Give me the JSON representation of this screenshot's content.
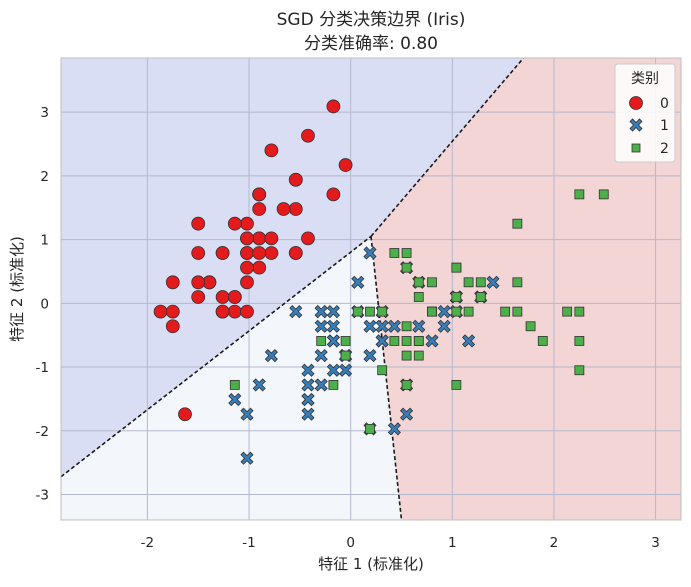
{
  "chart_data": {
    "type": "scatter",
    "title_line1": "SGD 分类决策边界 (Iris)",
    "title_line2": "分类准确率: 0.80",
    "xlabel": "特征 1 (标准化)",
    "ylabel": "特征 2 (标准化)",
    "xlim": [
      -2.85,
      3.25
    ],
    "ylim": [
      -3.4,
      3.85
    ],
    "xticks": [
      -2,
      -1,
      0,
      1,
      2,
      3
    ],
    "xtick_labels": [
      "-2",
      "-1",
      "0",
      "1",
      "2",
      "3"
    ],
    "yticks": [
      -3,
      -2,
      -1,
      0,
      1,
      2,
      3
    ],
    "ytick_labels": [
      "-3",
      "-2",
      "-1",
      "0",
      "1",
      "2",
      "3"
    ],
    "grid": true,
    "legend": {
      "title": "类别",
      "position": "top-right",
      "entries": [
        {
          "label": "0",
          "marker": "circle",
          "color": "#e41a1c"
        },
        {
          "label": "1",
          "marker": "x",
          "color": "#377eb8"
        },
        {
          "label": "2",
          "marker": "square",
          "color": "#4daf4a"
        }
      ]
    },
    "regions": [
      {
        "class": "0",
        "color": "#d9def5",
        "polygon": [
          [
            -2.85,
            3.85
          ],
          [
            1.7,
            3.85
          ],
          [
            0.2,
            1.05
          ],
          [
            -2.85,
            -2.72
          ]
        ]
      },
      {
        "class": "1",
        "color": "#f3f6fb",
        "polygon": [
          [
            -2.85,
            -2.72
          ],
          [
            0.2,
            1.05
          ],
          [
            0.5,
            -3.4
          ],
          [
            -2.85,
            -3.4
          ]
        ]
      },
      {
        "class": "2",
        "color": "#f3d5d6",
        "polygon": [
          [
            1.7,
            3.85
          ],
          [
            3.25,
            3.85
          ],
          [
            3.25,
            -3.4
          ],
          [
            0.5,
            -3.4
          ],
          [
            0.2,
            1.05
          ]
        ]
      }
    ],
    "boundaries": [
      {
        "name": "boundary-0-1",
        "points": [
          [
            -2.85,
            -2.72
          ],
          [
            0.2,
            1.05
          ]
        ]
      },
      {
        "name": "boundary-0-2",
        "points": [
          [
            0.2,
            1.05
          ],
          [
            1.7,
            3.85
          ]
        ]
      },
      {
        "name": "boundary-1-2",
        "points": [
          [
            0.2,
            1.05
          ],
          [
            0.5,
            -3.4
          ]
        ]
      }
    ],
    "series": [
      {
        "name": "0",
        "marker": "circle",
        "color": "#e41a1c",
        "points": [
          [
            -0.9,
            1.02
          ],
          [
            -1.14,
            -0.13
          ],
          [
            -1.39,
            0.33
          ],
          [
            -1.5,
            0.1
          ],
          [
            -1.02,
            1.25
          ],
          [
            -0.54,
            1.94
          ],
          [
            -1.5,
            0.79
          ],
          [
            -1.02,
            0.79
          ],
          [
            -1.75,
            -0.36
          ],
          [
            -1.14,
            0.1
          ],
          [
            -0.54,
            1.48
          ],
          [
            -1.26,
            0.79
          ],
          [
            -1.26,
            -0.13
          ],
          [
            -1.87,
            -0.13
          ],
          [
            -0.05,
            2.17
          ],
          [
            -0.17,
            3.09
          ],
          [
            -0.54,
            1.94
          ],
          [
            -0.9,
            1.02
          ],
          [
            -0.17,
            1.71
          ],
          [
            -0.9,
            1.71
          ],
          [
            -0.54,
            0.79
          ],
          [
            -0.9,
            1.48
          ],
          [
            -1.5,
            1.25
          ],
          [
            -0.9,
            0.56
          ],
          [
            -1.26,
            0.79
          ],
          [
            -1.02,
            -0.13
          ],
          [
            -1.02,
            0.79
          ],
          [
            -0.78,
            1.02
          ],
          [
            -0.78,
            0.79
          ],
          [
            -1.39,
            0.33
          ],
          [
            -1.26,
            0.1
          ],
          [
            -0.54,
            0.79
          ],
          [
            -0.78,
            2.4
          ],
          [
            -0.42,
            2.63
          ],
          [
            -1.14,
            0.1
          ],
          [
            -1.02,
            0.33
          ],
          [
            -0.42,
            1.02
          ],
          [
            -1.14,
            1.25
          ],
          [
            -1.75,
            -0.13
          ],
          [
            -0.9,
            0.79
          ],
          [
            -1.02,
            1.02
          ],
          [
            -1.63,
            -1.74
          ],
          [
            -1.75,
            0.33
          ],
          [
            -1.02,
            1.02
          ],
          [
            -0.9,
            1.71
          ],
          [
            -1.26,
            -0.13
          ],
          [
            -0.9,
            1.71
          ],
          [
            -1.5,
            0.33
          ],
          [
            -0.66,
            1.48
          ],
          [
            -1.02,
            0.56
          ]
        ]
      },
      {
        "name": "1",
        "marker": "x",
        "color": "#377eb8",
        "points": [
          [
            1.4,
            0.33
          ],
          [
            0.67,
            0.33
          ],
          [
            1.28,
            0.1
          ],
          [
            -0.42,
            -1.74
          ],
          [
            0.8,
            -0.59
          ],
          [
            -0.17,
            -0.59
          ],
          [
            0.55,
            0.56
          ],
          [
            -1.14,
            -1.51
          ],
          [
            0.92,
            -0.36
          ],
          [
            -0.78,
            -0.82
          ],
          [
            -1.02,
            -2.43
          ],
          [
            0.07,
            -0.13
          ],
          [
            0.19,
            -1.97
          ],
          [
            0.31,
            -0.36
          ],
          [
            -0.29,
            -0.36
          ],
          [
            1.04,
            0.1
          ],
          [
            -0.29,
            -0.13
          ],
          [
            -0.05,
            -0.82
          ],
          [
            0.43,
            -1.97
          ],
          [
            -0.29,
            -1.28
          ],
          [
            0.07,
            0.33
          ],
          [
            0.31,
            -0.59
          ],
          [
            0.55,
            -1.28
          ],
          [
            0.31,
            -0.59
          ],
          [
            0.67,
            -0.36
          ],
          [
            0.92,
            -0.13
          ],
          [
            1.16,
            -0.59
          ],
          [
            1.04,
            -0.13
          ],
          [
            0.19,
            -0.36
          ],
          [
            -0.17,
            -1.05
          ],
          [
            -0.42,
            -1.51
          ],
          [
            -0.42,
            -1.51
          ],
          [
            -0.05,
            -0.82
          ],
          [
            0.19,
            -0.82
          ],
          [
            -0.54,
            -0.13
          ],
          [
            0.19,
            0.79
          ],
          [
            1.04,
            0.1
          ],
          [
            0.55,
            -1.74
          ],
          [
            -0.29,
            -0.13
          ],
          [
            -0.42,
            -1.28
          ],
          [
            -0.42,
            -1.05
          ],
          [
            0.31,
            -0.13
          ],
          [
            -0.05,
            -1.05
          ],
          [
            -1.02,
            -1.74
          ],
          [
            -0.29,
            -0.82
          ],
          [
            -0.17,
            -0.13
          ],
          [
            -0.17,
            -0.36
          ],
          [
            0.43,
            -0.36
          ],
          [
            -0.9,
            -1.28
          ],
          [
            -0.17,
            -0.59
          ]
        ]
      },
      {
        "name": "2",
        "marker": "square",
        "color": "#4daf4a",
        "points": [
          [
            0.55,
            0.56
          ],
          [
            -0.05,
            -0.82
          ],
          [
            1.52,
            -0.13
          ],
          [
            0.55,
            -0.36
          ],
          [
            0.8,
            -0.13
          ],
          [
            2.13,
            -0.13
          ],
          [
            -1.14,
            -1.28
          ],
          [
            1.77,
            -0.36
          ],
          [
            1.04,
            -1.28
          ],
          [
            1.64,
            1.25
          ],
          [
            0.8,
            0.33
          ],
          [
            0.67,
            -0.82
          ],
          [
            1.16,
            -0.13
          ],
          [
            -0.17,
            -1.28
          ],
          [
            -0.05,
            -0.59
          ],
          [
            0.67,
            0.33
          ],
          [
            0.8,
            -0.13
          ],
          [
            2.25,
            1.71
          ],
          [
            2.25,
            -1.05
          ],
          [
            0.19,
            -1.97
          ],
          [
            1.28,
            0.33
          ],
          [
            -0.29,
            -0.59
          ],
          [
            2.25,
            -0.59
          ],
          [
            0.55,
            -0.82
          ],
          [
            1.04,
            0.56
          ],
          [
            1.64,
            0.33
          ],
          [
            0.43,
            -0.59
          ],
          [
            0.31,
            -0.13
          ],
          [
            0.67,
            -0.59
          ],
          [
            1.64,
            -0.13
          ],
          [
            1.89,
            -0.59
          ],
          [
            2.49,
            1.71
          ],
          [
            0.67,
            -0.59
          ],
          [
            0.55,
            -0.59
          ],
          [
            0.31,
            -1.05
          ],
          [
            2.25,
            -0.13
          ],
          [
            0.55,
            0.79
          ],
          [
            0.67,
            0.1
          ],
          [
            0.19,
            -0.13
          ],
          [
            1.28,
            0.1
          ],
          [
            1.04,
            0.1
          ],
          [
            1.28,
            0.1
          ],
          [
            -0.05,
            -0.82
          ],
          [
            1.16,
            0.33
          ],
          [
            1.04,
            0.56
          ],
          [
            1.04,
            -0.13
          ],
          [
            0.55,
            -1.28
          ],
          [
            0.8,
            -0.13
          ],
          [
            0.43,
            0.79
          ],
          [
            0.07,
            -0.13
          ]
        ]
      }
    ]
  }
}
